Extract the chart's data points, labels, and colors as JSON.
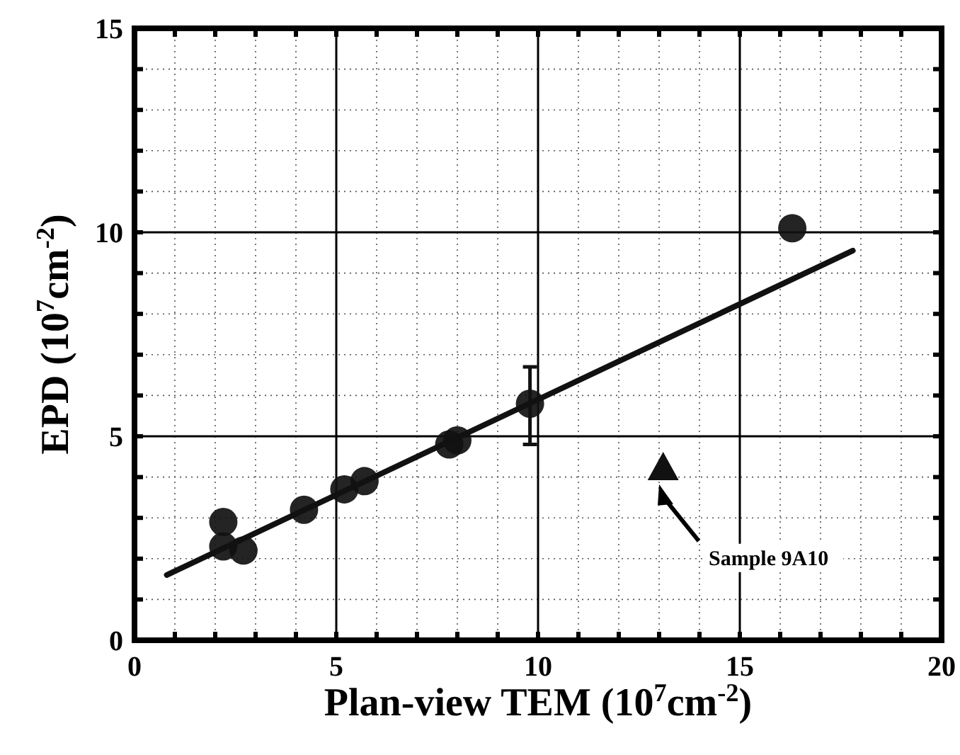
{
  "chart_data": {
    "type": "scatter",
    "xlabel": "Plan-view TEM (10$^{7}$cm$^{-2}$)",
    "ylabel": "EPD (10$^{7}$cm$^{-2}$)",
    "series": [
      {
        "color": "#111111",
        "marker": "circle",
        "x": [
          2.2,
          2.2,
          2.7,
          4.2,
          5.2,
          5.7,
          7.8,
          8.0,
          9.8,
          16.3
        ],
        "values": [
          2.9,
          2.3,
          2.2,
          3.2,
          3.7,
          3.9,
          4.8,
          4.9,
          5.8,
          10.1
        ],
        "errors": [
          null,
          null,
          null,
          null,
          null,
          null,
          null,
          null,
          [
            4.8,
            6.7
          ],
          null
        ]
      },
      {
        "color": "#111111",
        "marker": "triangle",
        "x": [
          13.1
        ],
        "values": [
          4.2
        ]
      },
      {
        "type": "line",
        "color": "#111111",
        "x": [
          0.8,
          17.8
        ],
        "values": [
          1.6,
          9.55
        ]
      }
    ],
    "annotations": [
      "Sample 9A10"
    ],
    "xlim": [
      0,
      20
    ],
    "ylim": [
      0,
      15
    ],
    "xticks": [
      0,
      5,
      10,
      15,
      20
    ],
    "yticks": [
      0,
      5,
      10,
      15
    ],
    "grid": true
  }
}
